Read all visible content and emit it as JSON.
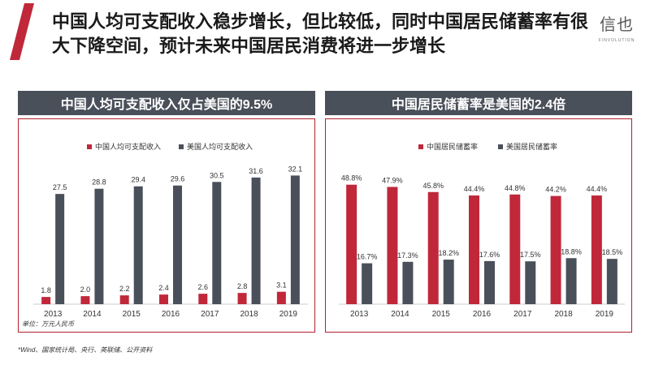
{
  "header": {
    "title": "中国人均可支配收入稳步增长，但比较低，同时中国居民储蓄率有很大下降空间，预计未来中国居民消费将进一步增长"
  },
  "logo": {
    "mark": "信也",
    "subtext": "FINVOLUTION"
  },
  "left_panel": {
    "title": "中国人均可支配收入仅占美国的9.5%",
    "unit_note": "单位：万元人民币"
  },
  "right_panel": {
    "title": "中国居民储蓄率是美国的2.4倍"
  },
  "footnote": "*Wind、国家统计局、央行、英联储、公开资料",
  "colors": {
    "red": "#c0283a",
    "slate": "#4a505a",
    "border": "#b0202e"
  },
  "chart_data": [
    {
      "type": "bar",
      "title": "中国人均可支配收入仅占美国的9.5%",
      "categories": [
        "2013",
        "2014",
        "2015",
        "2016",
        "2017",
        "2018",
        "2019"
      ],
      "series": [
        {
          "name": "中国人均可支配收入",
          "values": [
            1.8,
            2.0,
            2.2,
            2.4,
            2.6,
            2.8,
            3.1
          ],
          "labels": [
            "1.8",
            "2.0",
            "2.2",
            "2.4",
            "2.6",
            "2.8",
            "3.1"
          ]
        },
        {
          "name": "美国人均可支配收入",
          "values": [
            27.5,
            28.8,
            29.4,
            29.6,
            30.5,
            31.6,
            32.1
          ],
          "labels": [
            "27.5",
            "28.8",
            "29.4",
            "29.6",
            "30.5",
            "31.6",
            "32.1"
          ]
        }
      ],
      "ylim": [
        0,
        34
      ],
      "legend": "top",
      "xlabel": "",
      "ylabel": ""
    },
    {
      "type": "bar",
      "title": "中国居民储蓄率是美国的2.4倍",
      "categories": [
        "2013",
        "2014",
        "2015",
        "2016",
        "2017",
        "2018",
        "2019"
      ],
      "series": [
        {
          "name": "中国居民储蓄率",
          "values": [
            48.8,
            47.9,
            45.8,
            44.4,
            44.8,
            44.2,
            44.4
          ],
          "labels": [
            "48.8%",
            "47.9%",
            "45.8%",
            "44.4%",
            "44.8%",
            "44.2%",
            "44.4%"
          ]
        },
        {
          "name": "美国居民储蓄率",
          "values": [
            16.7,
            17.3,
            18.2,
            17.6,
            17.5,
            18.8,
            18.5
          ],
          "labels": [
            "16.7%",
            "17.3%",
            "18.2%",
            "17.6%",
            "17.5%",
            "18.8%",
            "18.5%"
          ]
        }
      ],
      "ylim": [
        0,
        55
      ],
      "legend": "top",
      "xlabel": "",
      "ylabel": ""
    }
  ]
}
